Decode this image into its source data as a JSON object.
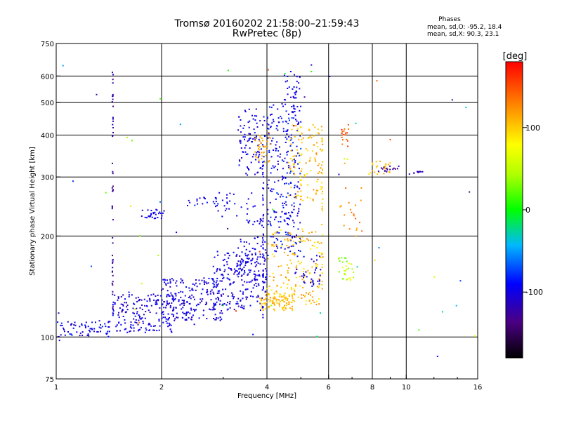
{
  "header": {
    "title": "Tromsø 20160202 21:58:00–21:59:43",
    "subtitle": "RwPretec (8p)"
  },
  "stats": {
    "title": "Phases",
    "o_line": "mean, sd,O: -95.2, 18.4",
    "x_line": "mean, sd,X:  90.3, 23.1"
  },
  "colorbar": {
    "label": "[deg]",
    "ticks": [
      {
        "value": 100,
        "label": "100"
      },
      {
        "value": 0,
        "label": "0"
      },
      {
        "value": -100,
        "label": "-100"
      }
    ],
    "range": [
      -180,
      180
    ]
  },
  "chart_data": {
    "type": "scatter",
    "xlabel": "Frequency [MHz]",
    "ylabel": "Stationary phase Virtual Height [km]",
    "xscale": "log",
    "yscale": "log",
    "xlim": [
      1,
      16
    ],
    "ylim": [
      75,
      750
    ],
    "xticks": [
      {
        "value": 1,
        "label": "1"
      },
      {
        "value": 2,
        "label": "2"
      },
      {
        "value": 4,
        "label": "4"
      },
      {
        "value": 6,
        "label": "6"
      },
      {
        "value": 8,
        "label": "8"
      },
      {
        "value": 10,
        "label": "10"
      },
      {
        "value": 16,
        "label": "16"
      }
    ],
    "yticks": [
      {
        "value": 75,
        "label": "75"
      },
      {
        "value": 100,
        "label": "100"
      },
      {
        "value": 200,
        "label": "200"
      },
      {
        "value": 300,
        "label": "300"
      },
      {
        "value": 400,
        "label": "400"
      },
      {
        "value": 500,
        "label": "500"
      },
      {
        "value": 600,
        "label": "600"
      },
      {
        "value": 750,
        "label": "750"
      }
    ],
    "vgrid": [
      2,
      4,
      6,
      8,
      10
    ],
    "hgrid": [
      100,
      200,
      300,
      400,
      500,
      600
    ],
    "grid": true,
    "color_variable": "phase [deg]",
    "clusters": [
      {
        "f": [
          1.0,
          1.45
        ],
        "h": [
          100,
          112
        ],
        "phase": [
          -115,
          -80
        ],
        "n": 70
      },
      {
        "f": [
          1.45,
          2.2
        ],
        "h": [
          103,
          135
        ],
        "phase": [
          -120,
          -85
        ],
        "n": 190
      },
      {
        "f": [
          2.0,
          3.0
        ],
        "h": [
          112,
          150
        ],
        "phase": [
          -120,
          -85
        ],
        "n": 200
      },
      {
        "f": [
          2.8,
          4.0
        ],
        "h": [
          120,
          180
        ],
        "phase": [
          -120,
          -85
        ],
        "n": 200
      },
      {
        "f": [
          3.3,
          4.0
        ],
        "h": [
          150,
          200
        ],
        "phase": [
          -115,
          -85
        ],
        "n": 60
      },
      {
        "f": [
          1.75,
          2.05
        ],
        "h": [
          225,
          240
        ],
        "phase": [
          -110,
          -90
        ],
        "n": 30
      },
      {
        "f": [
          2.35,
          2.9
        ],
        "h": [
          245,
          262
        ],
        "phase": [
          -110,
          -80
        ],
        "n": 22
      },
      {
        "f": [
          2.9,
          3.7
        ],
        "h": [
          228,
          275
        ],
        "phase": [
          -110,
          -90
        ],
        "n": 25
      },
      {
        "f": [
          3.3,
          3.95
        ],
        "h": [
          300,
          480
        ],
        "phase": [
          -115,
          -85
        ],
        "n": 100
      },
      {
        "f": [
          3.5,
          3.9
        ],
        "h": [
          215,
          225
        ],
        "phase": [
          -110,
          -90
        ],
        "n": 15
      },
      {
        "f": [
          4.0,
          5.0
        ],
        "h": [
          175,
          500
        ],
        "phase": [
          -115,
          -75
        ],
        "n": 260
      },
      {
        "f": [
          4.4,
          5.0
        ],
        "h": [
          480,
          620
        ],
        "phase": [
          -110,
          -90
        ],
        "n": 35
      },
      {
        "f": [
          3.8,
          4.8
        ],
        "h": [
          120,
          135
        ],
        "phase": [
          95,
          115
        ],
        "n": 90
      },
      {
        "f": [
          4.0,
          5.8
        ],
        "h": [
          125,
          210
        ],
        "phase": [
          80,
          130
        ],
        "n": 170
      },
      {
        "f": [
          4.6,
          5.8
        ],
        "h": [
          250,
          430
        ],
        "phase": [
          85,
          130
        ],
        "n": 120
      },
      {
        "f": [
          3.7,
          4.1
        ],
        "h": [
          330,
          400
        ],
        "phase": [
          100,
          125
        ],
        "n": 35
      },
      {
        "f": [
          4.8,
          5.7
        ],
        "h": [
          140,
          175
        ],
        "phase": [
          -120,
          -90
        ],
        "n": 35
      },
      {
        "f": [
          6.5,
          6.85
        ],
        "h": [
          370,
          440
        ],
        "phase": [
          130,
          165
        ],
        "n": 18
      },
      {
        "f": [
          6.4,
          7.1
        ],
        "h": [
          145,
          175
        ],
        "phase": [
          20,
          80
        ],
        "n": 30
      },
      {
        "f": [
          7.8,
          9.0
        ],
        "h": [
          305,
          335
        ],
        "phase": [
          90,
          120
        ],
        "n": 25
      },
      {
        "f": [
          8.4,
          9.6
        ],
        "h": [
          310,
          325
        ],
        "phase": [
          -135,
          -115
        ],
        "n": 15
      },
      {
        "f": [
          10.2,
          11.2
        ],
        "h": [
          305,
          312
        ],
        "phase": [
          -125,
          -105
        ],
        "n": 10
      },
      {
        "f": [
          6.4,
          7.5
        ],
        "h": [
          190,
          280
        ],
        "phase": [
          110,
          145
        ],
        "n": 20
      },
      {
        "f": [
          1.0,
          16.0
        ],
        "h": [
          80,
          650
        ],
        "phase": [
          -140,
          160
        ],
        "n": 60
      }
    ],
    "columns": [
      {
        "f": 1.45,
        "h": [
          100,
          640
        ],
        "phase": [
          -140,
          -110
        ],
        "n": 50
      },
      {
        "f": 3.9,
        "h": [
          110,
          330
        ],
        "phase": [
          -110,
          -90
        ],
        "n": 40
      },
      {
        "f": 5.75,
        "h": [
          140,
          420
        ],
        "phase": [
          80,
          120
        ],
        "n": 30
      }
    ]
  }
}
